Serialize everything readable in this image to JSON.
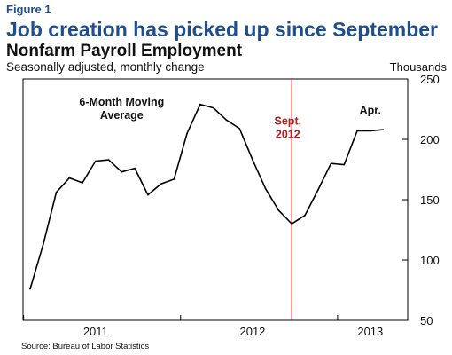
{
  "figure_label": "Figure 1",
  "title": "Job creation has picked up since September",
  "subtitle": "Nonfarm Payroll Employment",
  "note": "Seasonally adjusted, monthly change",
  "units": "Thousands",
  "source": "Source: Bureau of Labor Statistics",
  "colors": {
    "title": "#1f4e8c",
    "line": "#000000",
    "marker_line": "#c0272d"
  },
  "chart_data": {
    "type": "line",
    "title": "Nonfarm Payroll Employment",
    "ylabel": "Thousands",
    "ylim": [
      50,
      250
    ],
    "y_ticks": [
      50,
      100,
      150,
      200,
      250
    ],
    "y_axis_side": "right",
    "x_labels": [
      {
        "label": "2011",
        "index": 5
      },
      {
        "label": "2012",
        "index": 17
      },
      {
        "label": "2013",
        "index": 26
      }
    ],
    "series": [
      {
        "values": [
          76,
          113,
          156,
          168,
          164,
          182,
          183,
          173,
          176,
          154,
          163,
          167,
          205,
          229,
          226,
          216,
          209,
          183,
          159,
          141,
          130,
          137,
          158,
          180,
          179,
          207,
          207,
          208
        ]
      }
    ],
    "annotations": [
      {
        "text": "6-Month Moving\nAverage",
        "index": 7,
        "value": 228
      },
      {
        "text": "Sept.\n2012",
        "index": 19.7,
        "value": 212
      },
      {
        "text": "Apr.",
        "index": 26,
        "value": 221
      }
    ],
    "vertical_marker": {
      "index": 20,
      "label": "Sept.\n2012"
    }
  }
}
